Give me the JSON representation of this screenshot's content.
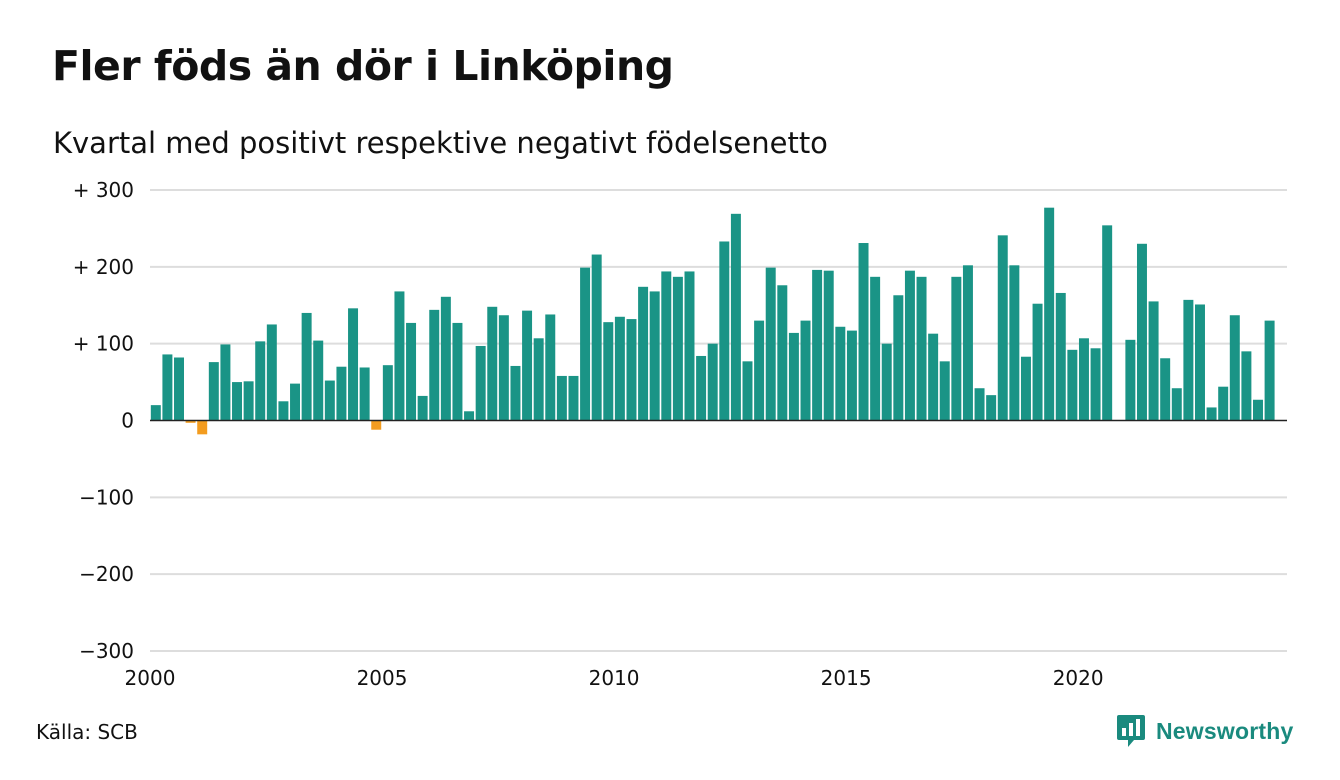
{
  "title": "Fler föds än dör i Linköping",
  "subtitle": "Kvartal med positivt respektive negativt födelsenetto",
  "source": "Källa: SCB",
  "brand": {
    "name": "Newsworthy",
    "icon": "newsworthy-logo-icon",
    "color": "#1a8a7e"
  },
  "chart_data": {
    "type": "bar",
    "title": "Fler föds än dör i Linköping",
    "subtitle": "Kvartal med positivt respektive negativt födelsenetto",
    "xlabel": "",
    "ylabel": "",
    "ylim": [
      -300,
      300
    ],
    "xlim": [
      2000,
      2024.5
    ],
    "grid": true,
    "legend": "none",
    "colors": {
      "positive": "#1a9486",
      "negative": "#f39c1f",
      "gridline": "#dddddd",
      "zero_line": "#222222"
    },
    "y_ticks": [
      {
        "value": 300,
        "label": "+ 300"
      },
      {
        "value": 200,
        "label": "+ 200"
      },
      {
        "value": 100,
        "label": "+ 100"
      },
      {
        "value": 0,
        "label": "0"
      },
      {
        "value": -100,
        "label": "−100"
      },
      {
        "value": -200,
        "label": "−200"
      },
      {
        "value": -300,
        "label": "−300"
      }
    ],
    "x_ticks": [
      {
        "value": 2000,
        "label": "2000"
      },
      {
        "value": 2005,
        "label": "2005"
      },
      {
        "value": 2010,
        "label": "2010"
      },
      {
        "value": 2015,
        "label": "2015"
      },
      {
        "value": 2020,
        "label": "2020"
      }
    ],
    "x_start": 2000,
    "quarters_per_year": 4,
    "values": [
      20,
      86,
      82,
      -3,
      -18,
      76,
      99,
      50,
      51,
      103,
      125,
      25,
      48,
      140,
      104,
      52,
      70,
      146,
      69,
      -12,
      72,
      168,
      127,
      32,
      144,
      161,
      127,
      12,
      97,
      148,
      137,
      71,
      143,
      107,
      138,
      58,
      58,
      199,
      216,
      128,
      135,
      132,
      174,
      168,
      194,
      187,
      194,
      84,
      100,
      233,
      269,
      77,
      130,
      199,
      176,
      114,
      130,
      196,
      195,
      122,
      117,
      231,
      187,
      100,
      163,
      195,
      187,
      113,
      77,
      187,
      202,
      42,
      33,
      241,
      202,
      83,
      152,
      277,
      166,
      92,
      107,
      94,
      254,
      0,
      105,
      230,
      155,
      81,
      42,
      157,
      151,
      17,
      44,
      137,
      90,
      27,
      130
    ]
  }
}
